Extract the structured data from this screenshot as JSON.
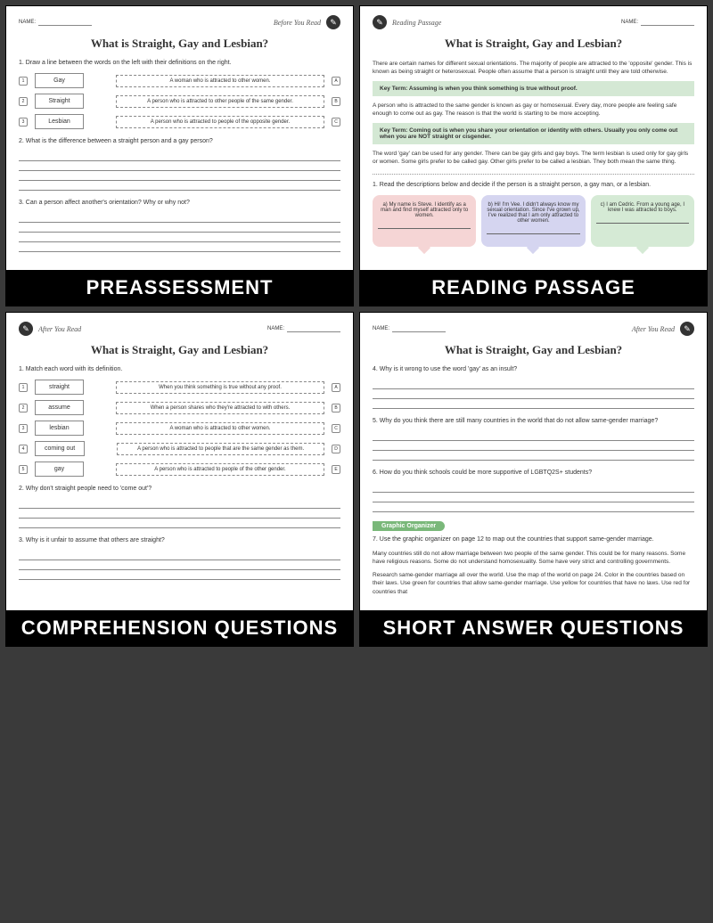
{
  "common": {
    "name_label": "NAME:",
    "main_title": "What is Straight, Gay and Lesbian?",
    "pencil_glyph": "✎"
  },
  "panel1": {
    "section": "Before You Read",
    "label": "PREASSESSMENT",
    "q1": "1.  Draw a line between the words on the left with their definitions on the right.",
    "matches": [
      {
        "n": "1",
        "word": "Gay",
        "def": "A woman who is attracted to other women.",
        "l": "A"
      },
      {
        "n": "2",
        "word": "Straight",
        "def": "A person who is attracted to other people of the same gender.",
        "l": "B"
      },
      {
        "n": "3",
        "word": "Lesbian",
        "def": "A person who is attracted to people of the opposite gender.",
        "l": "C"
      }
    ],
    "q2": "2.  What is the difference between a straight person and a gay person?",
    "q3": "3.  Can a person affect another's orientation? Why or why not?"
  },
  "panel2": {
    "section": "Reading Passage",
    "label": "READING PASSAGE",
    "p1": "There are certain names for different sexual orientations. The majority of people are attracted to the 'opposite' gender. This is known as being straight or heterosexual. People often assume that a person is straight until they are told otherwise.",
    "kt1": "Key Term: Assuming is when you think something is true without proof.",
    "p2": "A person who is attracted to the same gender is known as gay or homosexual. Every day, more people are feeling safe enough to come out as gay. The reason is that the world is starting to be more accepting.",
    "kt2": "Key Term: Coming out is when you share your orientation or identity with others. Usually you only come out when you are NOT straight or cisgender.",
    "p3": "The word 'gay' can be used for any gender. There can be gay girls and gay boys. The term lesbian is used only for gay girls or women. Some girls prefer to be called gay. Other girls prefer to be called a lesbian. They both mean the same thing.",
    "q1": "1.  Read the descriptions below and decide if the person is a straight person, a gay man, or a lesbian.",
    "bubble_a": "a) My name is Steve. I identify as a man and find myself attracted only to women.",
    "bubble_b": "b) Hi! I'm Vee. I didn't always know my sexual orientation. Since I've grown up, I've realized that I am only attracted to other women.",
    "bubble_c": "c) I am Cedric. From a young age, I knew I was attracted to boys."
  },
  "panel3": {
    "section": "After You Read",
    "label": "COMPREHENSION QUESTIONS",
    "q1": "1.  Match each word with its definition.",
    "matches": [
      {
        "n": "1",
        "word": "straight",
        "def": "When you think something is true without any proof.",
        "l": "A"
      },
      {
        "n": "2",
        "word": "assume",
        "def": "When a person shares who they're attracted to with others.",
        "l": "B"
      },
      {
        "n": "3",
        "word": "lesbian",
        "def": "A woman who is attracted to other women.",
        "l": "C"
      },
      {
        "n": "4",
        "word": "coming out",
        "def": "A person who is attracted to people that are the same gender as them.",
        "l": "D"
      },
      {
        "n": "5",
        "word": "gay",
        "def": "A person who is attracted to people of the other gender.",
        "l": "E"
      }
    ],
    "q2": "2.  Why don't straight people need to 'come out'?",
    "q3": "3.  Why is it unfair to assume that others are straight?"
  },
  "panel4": {
    "section": "After You Read",
    "label": "SHORT ANSWER QUESTIONS",
    "q4": "4.  Why is it wrong to use the word 'gay' as an insult?",
    "q5": "5.  Why do you think there are still many countries in the world that do not allow same-gender marriage?",
    "q6": "6.  How do you think schools could be more supportive of LGBTQ2S+ students?",
    "organizer": "Graphic Organizer",
    "q7": "7.  Use the graphic organizer on page 12 to map out the countries that support same-gender marriage.",
    "p7a": "Many countries still do not allow marriage between two people of the same gender. This could be for many reasons. Some have religious reasons. Some do not understand homosexuality. Some have very strict and controlling governments.",
    "p7b": "Research same-gender marriage all over the world. Use the map of the world on page 24. Color in the countries based on their laws. Use green for countries that allow same-gender marriage. Use yellow for countries that have no laws. Use red for countries that"
  }
}
